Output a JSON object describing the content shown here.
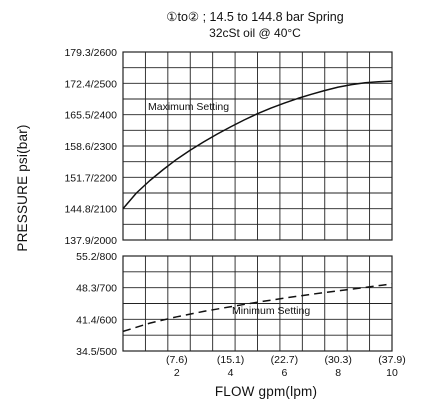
{
  "chart_data": {
    "type": "line",
    "title_line1": "①to② ; 14.5 to 144.8 bar Spring",
    "title_line2": "32cSt oil @ 40°C",
    "xlabel": "FLOW gpm(lpm)",
    "ylabel": "PRESSURE  psi(bar)",
    "grid": true,
    "x": {
      "range": [
        0,
        10
      ],
      "tick_values": [
        2,
        4,
        6,
        8,
        10
      ],
      "tick_labels_gpm": [
        "2",
        "4",
        "6",
        "8",
        "10"
      ],
      "tick_labels_lpm": [
        "(7.6)",
        "(15.1)",
        "(22.7)",
        "(30.3)",
        "(37.9)"
      ]
    },
    "panels": [
      {
        "name": "Maximum Setting",
        "annotation": "Maximum Setting",
        "y_range_psi": [
          2000,
          2600
        ],
        "y_tick_values": [
          2000,
          2100,
          2200,
          2300,
          2400,
          2500,
          2600
        ],
        "y_tick_labels": [
          "137.9/2000",
          "144.8/2100",
          "151.7/2200",
          "158.6/2300",
          "165.5/2400",
          "172.4/2500",
          "179.3/2600"
        ],
        "line_style": "solid",
        "points": [
          {
            "x": 0,
            "y": 2100
          },
          {
            "x": 0.5,
            "y": 2150
          },
          {
            "x": 1,
            "y": 2190
          },
          {
            "x": 1.5,
            "y": 2225
          },
          {
            "x": 2,
            "y": 2258
          },
          {
            "x": 2.5,
            "y": 2287
          },
          {
            "x": 3,
            "y": 2313
          },
          {
            "x": 3.5,
            "y": 2338
          },
          {
            "x": 4,
            "y": 2361
          },
          {
            "x": 4.5,
            "y": 2383
          },
          {
            "x": 5,
            "y": 2403
          },
          {
            "x": 5.5,
            "y": 2421
          },
          {
            "x": 6,
            "y": 2437
          },
          {
            "x": 6.5,
            "y": 2452
          },
          {
            "x": 7,
            "y": 2465
          },
          {
            "x": 7.5,
            "y": 2477
          },
          {
            "x": 8,
            "y": 2488
          },
          {
            "x": 8.5,
            "y": 2496
          },
          {
            "x": 9,
            "y": 2502
          },
          {
            "x": 9.5,
            "y": 2505
          },
          {
            "x": 10,
            "y": 2507
          }
        ]
      },
      {
        "name": "Minimum Setting",
        "annotation": "Minimum Setting",
        "y_range_psi": [
          500,
          800
        ],
        "y_tick_values": [
          500,
          600,
          700,
          800
        ],
        "y_tick_labels": [
          "34.5/500",
          "41.4/600",
          "48.3/700",
          "55.2/800"
        ],
        "line_style": "dashed",
        "points": [
          {
            "x": 0,
            "y": 562
          },
          {
            "x": 1,
            "y": 588
          },
          {
            "x": 2,
            "y": 608
          },
          {
            "x": 3,
            "y": 625
          },
          {
            "x": 4,
            "y": 640
          },
          {
            "x": 5,
            "y": 654
          },
          {
            "x": 6,
            "y": 667
          },
          {
            "x": 7,
            "y": 679
          },
          {
            "x": 8,
            "y": 690
          },
          {
            "x": 9,
            "y": 701
          },
          {
            "x": 10,
            "y": 712
          }
        ]
      }
    ],
    "colors": {
      "line": "#111111",
      "grid": "#222222",
      "background": "#ffffff"
    }
  }
}
